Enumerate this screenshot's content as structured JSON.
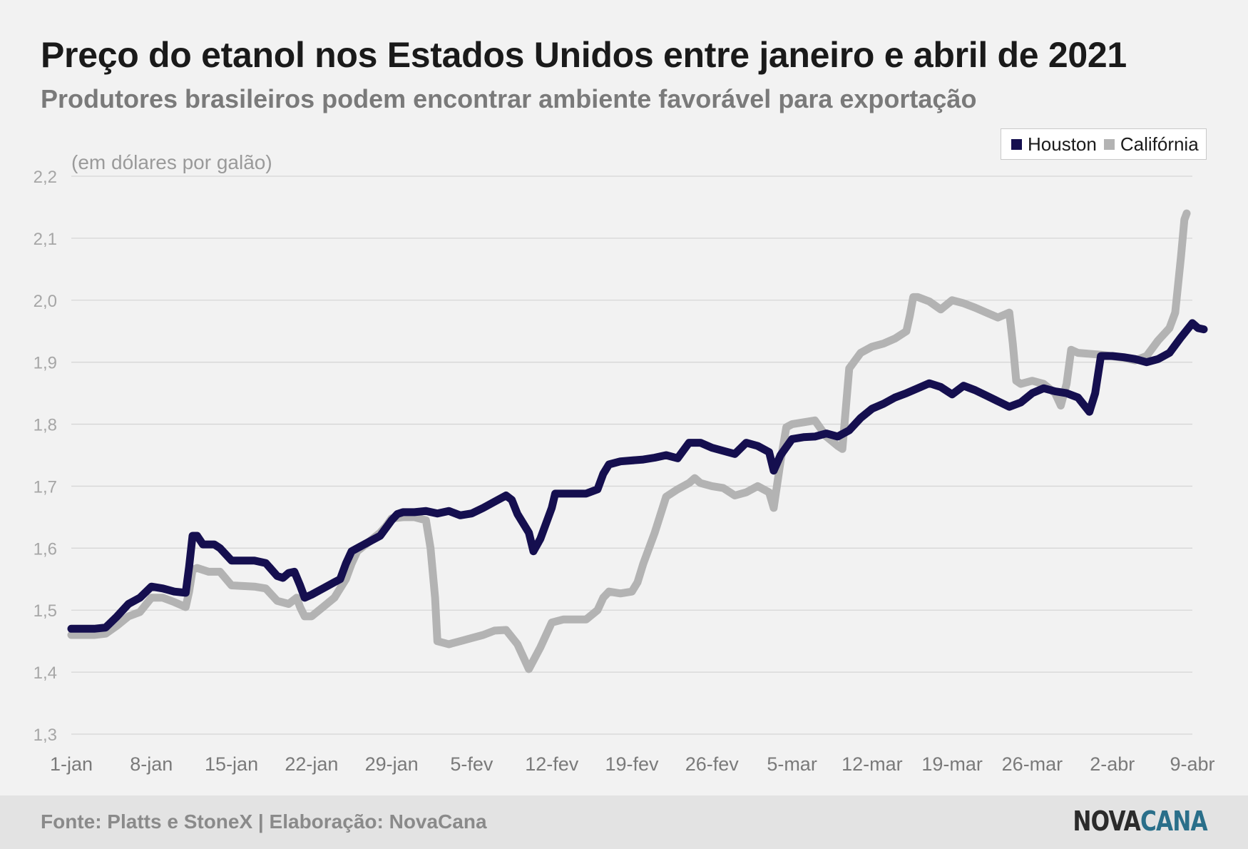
{
  "header": {
    "title": "Preço do etanol nos Estados Unidos entre janeiro e abril de 2021",
    "subtitle": "Produtores brasileiros podem encontrar ambiente favorável para exportação"
  },
  "footer": {
    "source": "Fonte: Platts e StoneX | Elaboração: NovaCana",
    "logo_part1": "NOVA",
    "logo_part2": "CANA"
  },
  "chart_data": {
    "type": "line",
    "unit_note": "(em dólares por galão)",
    "ylim": [
      1.3,
      2.2
    ],
    "yticks": [
      1.3,
      1.4,
      1.5,
      1.6,
      1.7,
      1.8,
      1.9,
      2.0,
      2.1,
      2.2
    ],
    "ytick_labels": [
      "1,3",
      "1,4",
      "1,5",
      "1,6",
      "1,7",
      "1,8",
      "1,9",
      "2,0",
      "2,1",
      "2,2"
    ],
    "xlim": [
      0,
      98
    ],
    "xticks": [
      0,
      7,
      14,
      21,
      28,
      35,
      42,
      49,
      56,
      63,
      70,
      77,
      84,
      91,
      98
    ],
    "xtick_labels": [
      "1-jan",
      "8-jan",
      "15-jan",
      "22-jan",
      "29-jan",
      "5-fev",
      "12-fev",
      "19-fev",
      "26-fev",
      "5-mar",
      "12-mar",
      "19-mar",
      "26-mar",
      "2-abr",
      "9-abr"
    ],
    "grid": true,
    "legend_position": "top-right",
    "series": [
      {
        "name": "Houston",
        "color": "#150f4f",
        "points": [
          [
            0,
            1.47
          ],
          [
            2,
            1.47
          ],
          [
            3,
            1.472
          ],
          [
            4,
            1.49
          ],
          [
            5,
            1.51
          ],
          [
            6,
            1.52
          ],
          [
            7,
            1.538
          ],
          [
            8,
            1.535
          ],
          [
            9,
            1.53
          ],
          [
            10,
            1.528
          ],
          [
            10.3,
            1.57
          ],
          [
            10.6,
            1.62
          ],
          [
            11,
            1.62
          ],
          [
            11.5,
            1.606
          ],
          [
            12.5,
            1.606
          ],
          [
            13,
            1.6
          ],
          [
            14,
            1.58
          ],
          [
            16,
            1.58
          ],
          [
            17,
            1.576
          ],
          [
            18,
            1.555
          ],
          [
            18.5,
            1.552
          ],
          [
            19,
            1.56
          ],
          [
            19.5,
            1.562
          ],
          [
            20,
            1.54
          ],
          [
            20.4,
            1.52
          ],
          [
            21,
            1.525
          ],
          [
            22,
            1.535
          ],
          [
            23,
            1.545
          ],
          [
            23.5,
            1.55
          ],
          [
            24,
            1.575
          ],
          [
            24.5,
            1.595
          ],
          [
            25,
            1.6
          ],
          [
            26,
            1.61
          ],
          [
            27,
            1.62
          ],
          [
            28,
            1.645
          ],
          [
            28.5,
            1.655
          ],
          [
            29,
            1.658
          ],
          [
            30,
            1.658
          ],
          [
            31,
            1.66
          ],
          [
            32,
            1.656
          ],
          [
            33,
            1.66
          ],
          [
            34,
            1.653
          ],
          [
            35,
            1.656
          ],
          [
            36,
            1.665
          ],
          [
            37,
            1.675
          ],
          [
            38,
            1.685
          ],
          [
            38.5,
            1.678
          ],
          [
            39,
            1.655
          ],
          [
            40,
            1.625
          ],
          [
            40.4,
            1.595
          ],
          [
            41,
            1.615
          ],
          [
            42,
            1.665
          ],
          [
            42.3,
            1.688
          ],
          [
            43,
            1.688
          ],
          [
            45,
            1.688
          ],
          [
            46,
            1.695
          ],
          [
            46.5,
            1.72
          ],
          [
            47,
            1.735
          ],
          [
            48,
            1.74
          ],
          [
            50,
            1.743
          ],
          [
            51,
            1.746
          ],
          [
            52,
            1.75
          ],
          [
            53,
            1.745
          ],
          [
            54,
            1.77
          ],
          [
            55,
            1.77
          ],
          [
            56,
            1.762
          ],
          [
            58,
            1.752
          ],
          [
            59,
            1.77
          ],
          [
            60,
            1.765
          ],
          [
            61,
            1.755
          ],
          [
            61.4,
            1.725
          ],
          [
            62,
            1.75
          ],
          [
            63,
            1.776
          ],
          [
            64,
            1.779
          ],
          [
            65,
            1.78
          ],
          [
            66,
            1.785
          ],
          [
            67,
            1.78
          ],
          [
            68,
            1.79
          ],
          [
            69,
            1.81
          ],
          [
            70,
            1.825
          ],
          [
            71,
            1.833
          ],
          [
            72,
            1.843
          ],
          [
            73,
            1.85
          ],
          [
            74,
            1.858
          ],
          [
            75,
            1.866
          ],
          [
            76,
            1.86
          ],
          [
            77,
            1.848
          ],
          [
            78,
            1.862
          ],
          [
            79,
            1.855
          ],
          [
            80,
            1.846
          ],
          [
            81,
            1.837
          ],
          [
            82,
            1.828
          ],
          [
            83,
            1.835
          ],
          [
            84,
            1.85
          ],
          [
            85,
            1.858
          ],
          [
            86,
            1.853
          ],
          [
            87,
            1.85
          ],
          [
            88,
            1.843
          ],
          [
            89,
            1.82
          ],
          [
            89.5,
            1.85
          ],
          [
            90,
            1.91
          ],
          [
            91,
            1.91
          ],
          [
            92,
            1.908
          ],
          [
            93,
            1.905
          ],
          [
            94,
            1.9
          ],
          [
            95,
            1.905
          ],
          [
            96,
            1.915
          ],
          [
            97,
            1.94
          ],
          [
            98,
            1.963
          ],
          [
            98.5,
            1.955
          ],
          [
            99,
            1.953
          ]
        ]
      },
      {
        "name": "Califórnia",
        "color": "#b3b3b3",
        "points": [
          [
            0,
            1.46
          ],
          [
            2,
            1.46
          ],
          [
            3,
            1.462
          ],
          [
            4,
            1.475
          ],
          [
            5,
            1.49
          ],
          [
            6,
            1.497
          ],
          [
            7,
            1.52
          ],
          [
            8,
            1.52
          ],
          [
            9,
            1.513
          ],
          [
            10,
            1.505
          ],
          [
            10.3,
            1.53
          ],
          [
            10.6,
            1.565
          ],
          [
            11,
            1.568
          ],
          [
            12,
            1.562
          ],
          [
            13,
            1.562
          ],
          [
            14,
            1.54
          ],
          [
            16,
            1.538
          ],
          [
            17,
            1.535
          ],
          [
            18,
            1.515
          ],
          [
            19,
            1.51
          ],
          [
            19.7,
            1.52
          ],
          [
            20,
            1.505
          ],
          [
            20.4,
            1.49
          ],
          [
            21,
            1.49
          ],
          [
            22,
            1.505
          ],
          [
            23,
            1.52
          ],
          [
            24,
            1.55
          ],
          [
            24.5,
            1.575
          ],
          [
            25,
            1.595
          ],
          [
            26,
            1.61
          ],
          [
            27,
            1.625
          ],
          [
            27.5,
            1.635
          ],
          [
            28,
            1.648
          ],
          [
            29,
            1.65
          ],
          [
            30,
            1.65
          ],
          [
            31,
            1.645
          ],
          [
            31.4,
            1.6
          ],
          [
            31.8,
            1.52
          ],
          [
            32,
            1.45
          ],
          [
            33,
            1.445
          ],
          [
            34,
            1.45
          ],
          [
            35,
            1.455
          ],
          [
            36,
            1.46
          ],
          [
            37,
            1.467
          ],
          [
            38,
            1.468
          ],
          [
            39,
            1.445
          ],
          [
            39.5,
            1.425
          ],
          [
            40,
            1.405
          ],
          [
            41,
            1.44
          ],
          [
            42,
            1.48
          ],
          [
            43,
            1.485
          ],
          [
            45,
            1.485
          ],
          [
            46,
            1.5
          ],
          [
            46.5,
            1.52
          ],
          [
            47,
            1.53
          ],
          [
            48,
            1.527
          ],
          [
            49,
            1.53
          ],
          [
            49.5,
            1.545
          ],
          [
            50,
            1.575
          ],
          [
            51,
            1.625
          ],
          [
            52,
            1.683
          ],
          [
            53,
            1.695
          ],
          [
            54,
            1.705
          ],
          [
            54.5,
            1.713
          ],
          [
            55,
            1.705
          ],
          [
            56,
            1.7
          ],
          [
            57,
            1.697
          ],
          [
            58,
            1.685
          ],
          [
            59,
            1.69
          ],
          [
            60,
            1.7
          ],
          [
            61,
            1.69
          ],
          [
            61.4,
            1.665
          ],
          [
            62,
            1.74
          ],
          [
            62.5,
            1.795
          ],
          [
            63,
            1.8
          ],
          [
            64,
            1.803
          ],
          [
            65,
            1.806
          ],
          [
            66,
            1.78
          ],
          [
            67,
            1.765
          ],
          [
            67.4,
            1.76
          ],
          [
            68,
            1.89
          ],
          [
            69,
            1.915
          ],
          [
            70,
            1.925
          ],
          [
            71,
            1.93
          ],
          [
            72,
            1.938
          ],
          [
            73,
            1.95
          ],
          [
            73.3,
            1.975
          ],
          [
            73.6,
            2.005
          ],
          [
            74,
            2.005
          ],
          [
            75,
            1.998
          ],
          [
            76,
            1.985
          ],
          [
            77,
            2.0
          ],
          [
            78,
            1.995
          ],
          [
            79,
            1.988
          ],
          [
            80,
            1.98
          ],
          [
            81,
            1.972
          ],
          [
            82,
            1.98
          ],
          [
            82.3,
            1.93
          ],
          [
            82.6,
            1.87
          ],
          [
            83,
            1.865
          ],
          [
            84,
            1.87
          ],
          [
            85,
            1.865
          ],
          [
            86,
            1.85
          ],
          [
            86.5,
            1.83
          ],
          [
            87,
            1.865
          ],
          [
            87.4,
            1.92
          ],
          [
            88,
            1.915
          ],
          [
            90,
            1.912
          ],
          [
            92,
            1.907
          ],
          [
            93,
            1.903
          ],
          [
            94,
            1.91
          ],
          [
            95,
            1.935
          ],
          [
            96,
            1.955
          ],
          [
            96.5,
            1.98
          ],
          [
            97,
            2.07
          ],
          [
            97.3,
            2.13
          ],
          [
            97.5,
            2.14
          ]
        ]
      }
    ]
  }
}
